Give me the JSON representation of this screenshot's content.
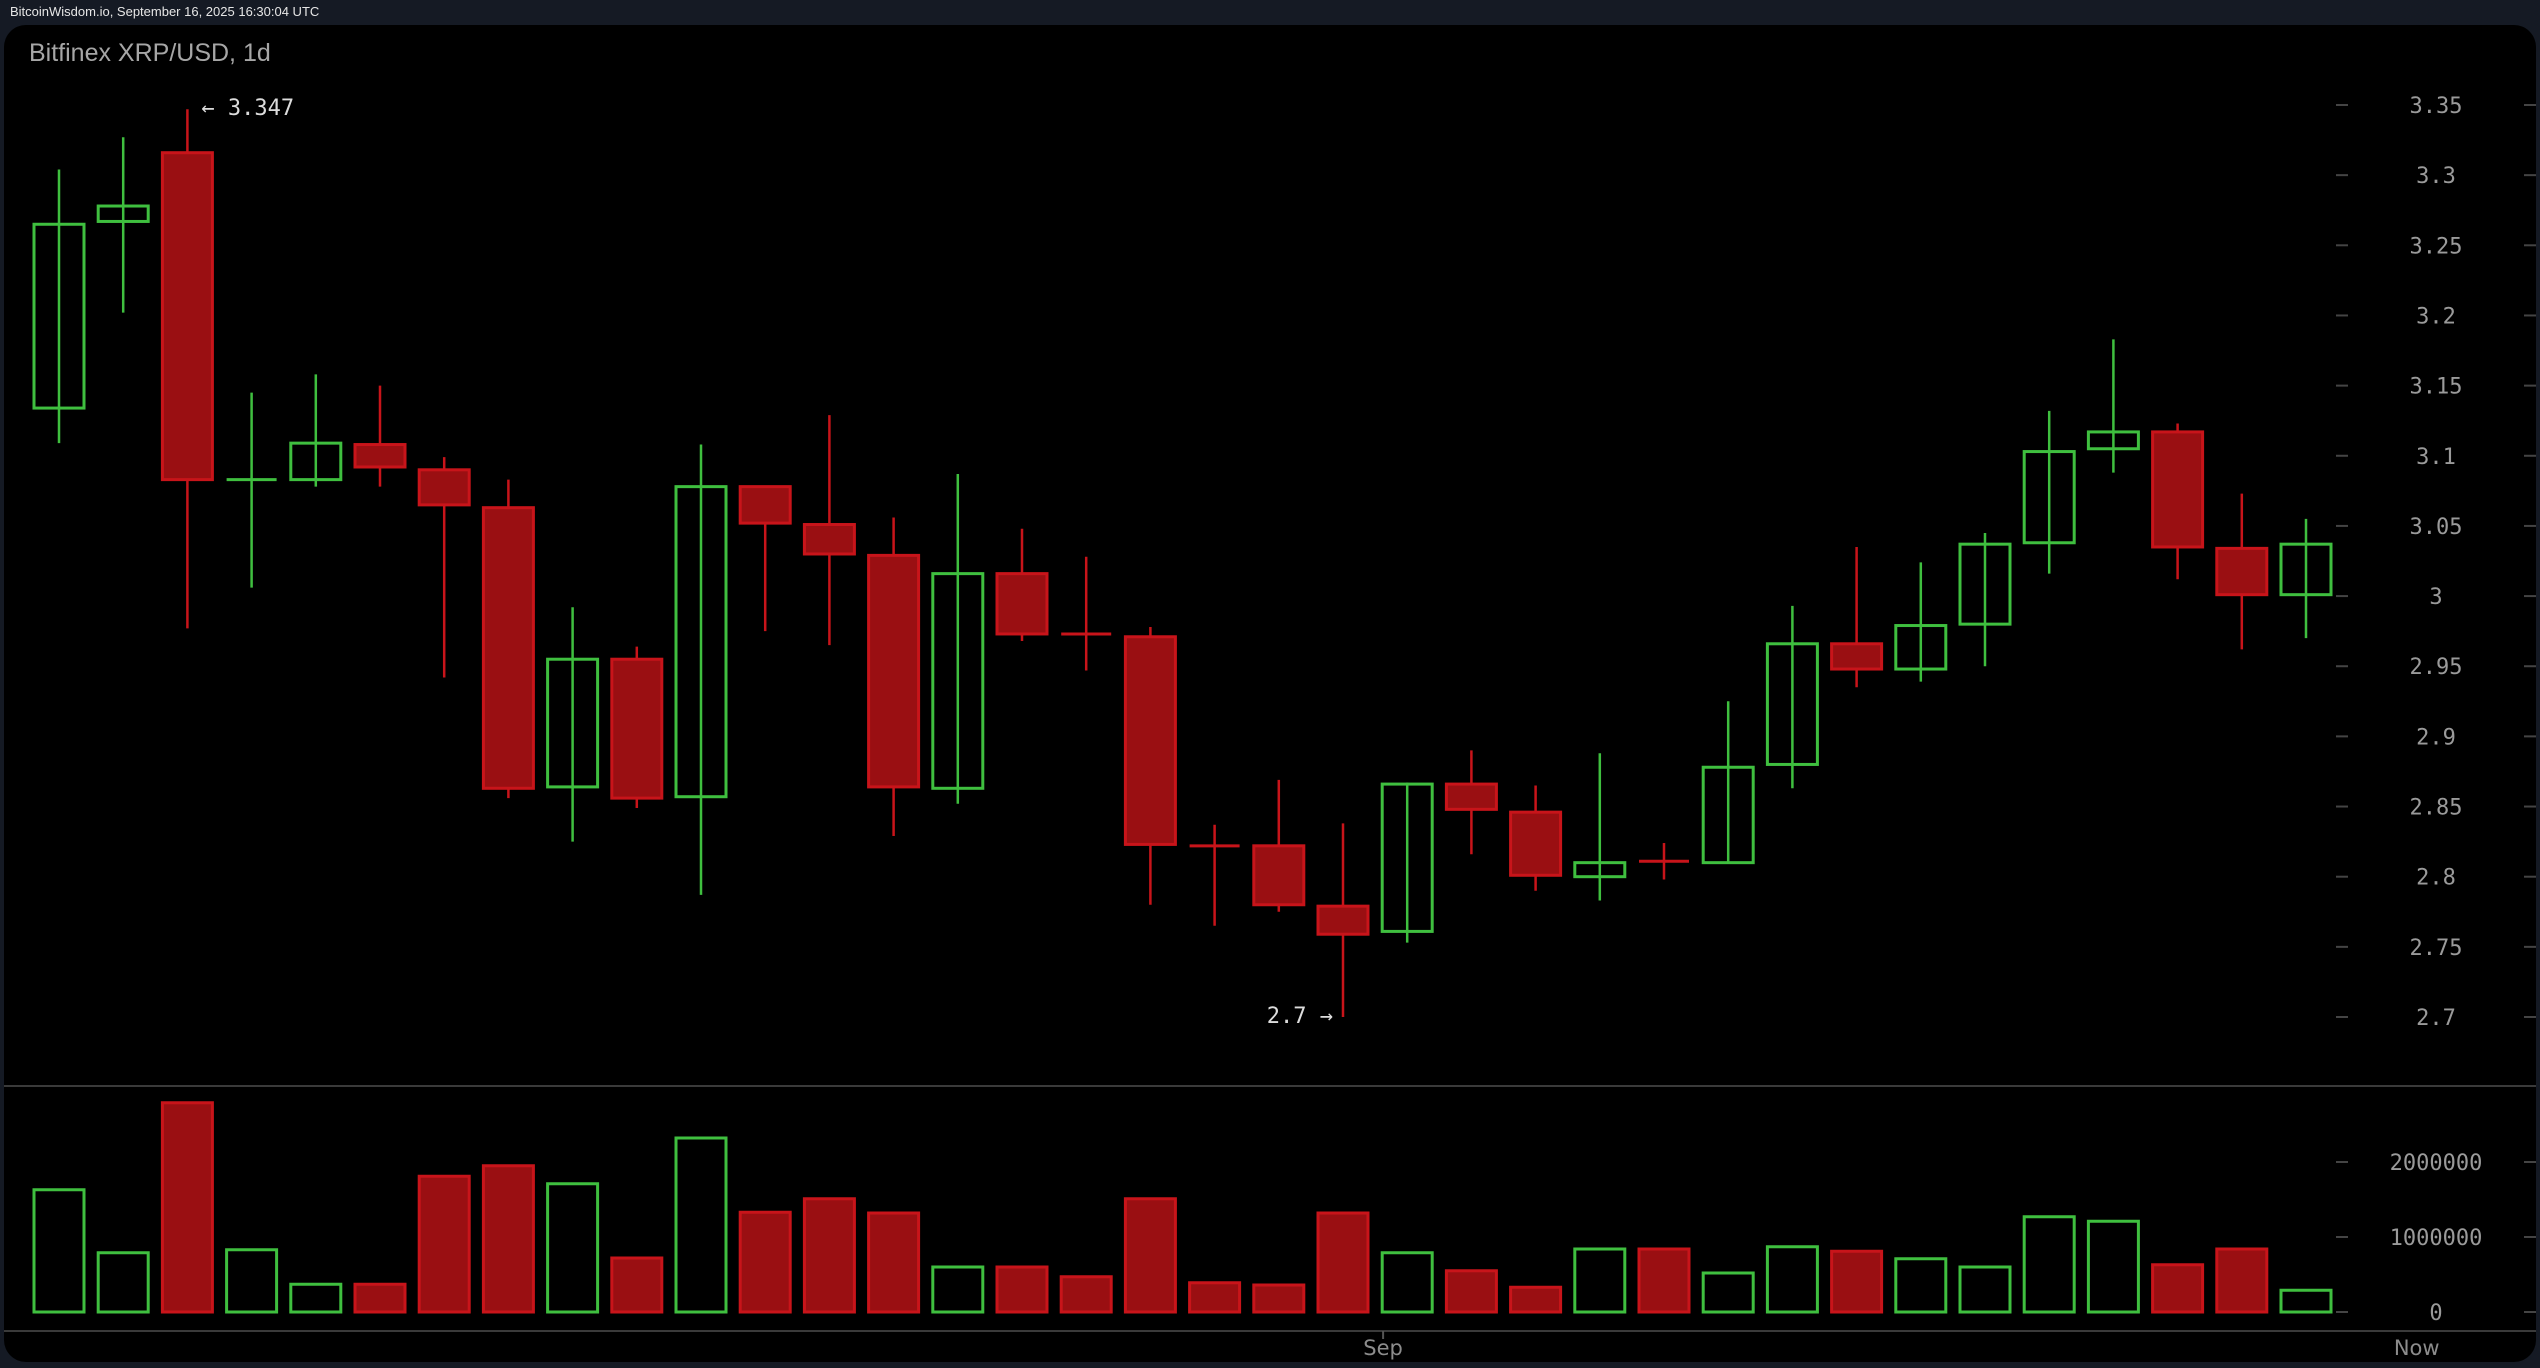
{
  "watermark": "BitcoinWisdom.io, September 16, 2025 16:30:04 UTC",
  "title": "Bitfinex XRP/USD, 1d",
  "colors": {
    "up": "#3fbf3f",
    "down": "#c8141a",
    "down_fill": "#9a0f12",
    "grid": "#3a3a3a",
    "axis_text": "#9a9a9a",
    "background": "#000000"
  },
  "annotations": {
    "high_label": "← 3.347",
    "low_label": "2.7 →"
  },
  "x_axis": {
    "labels": [
      {
        "text": "Sep",
        "index": 21.5
      },
      {
        "text": "Now",
        "index": 37.6
      }
    ]
  },
  "chart_data": {
    "type": "candlestick",
    "title": "Bitfinex XRP/USD, 1d",
    "xlabel": "",
    "ylabel": "",
    "price_ticks": [
      3.35,
      3.3,
      3.25,
      3.2,
      3.15,
      3.1,
      3.05,
      3,
      2.95,
      2.9,
      2.85,
      2.8,
      2.75,
      2.7
    ],
    "price_tick_labels": [
      "3.35",
      "3.3",
      "3.25",
      "3.2",
      "3.15",
      "3.1",
      "3.05",
      "3",
      "2.95",
      "2.9",
      "2.85",
      "2.8",
      "2.75",
      "2.7"
    ],
    "volume_ticks": [
      0,
      1000000,
      2000000
    ],
    "volume_tick_labels": [
      "0",
      "1000000",
      "2000000"
    ],
    "ylim": [
      2.7,
      3.35
    ],
    "x_tick_labels": [
      "Sep",
      "Now"
    ],
    "high": 3.347,
    "low": 2.7,
    "candles": [
      {
        "o": 3.134,
        "h": 3.304,
        "l": 3.109,
        "c": 3.265,
        "v": 1630000
      },
      {
        "o": 3.267,
        "h": 3.327,
        "l": 3.202,
        "c": 3.278,
        "v": 790000
      },
      {
        "o": 3.316,
        "h": 3.347,
        "l": 2.977,
        "c": 3.083,
        "v": 2790000
      },
      {
        "o": 3.082,
        "h": 3.145,
        "l": 3.006,
        "c": 3.083,
        "v": 830000
      },
      {
        "o": 3.083,
        "h": 3.158,
        "l": 3.078,
        "c": 3.109,
        "v": 370000
      },
      {
        "o": 3.108,
        "h": 3.15,
        "l": 3.078,
        "c": 3.092,
        "v": 370000
      },
      {
        "o": 3.09,
        "h": 3.099,
        "l": 2.942,
        "c": 3.065,
        "v": 1810000
      },
      {
        "o": 3.063,
        "h": 3.083,
        "l": 2.856,
        "c": 2.863,
        "v": 1950000
      },
      {
        "o": 2.864,
        "h": 2.992,
        "l": 2.825,
        "c": 2.955,
        "v": 1710000
      },
      {
        "o": 2.955,
        "h": 2.964,
        "l": 2.849,
        "c": 2.856,
        "v": 720000
      },
      {
        "o": 2.857,
        "h": 3.108,
        "l": 2.787,
        "c": 3.078,
        "v": 2320000
      },
      {
        "o": 3.078,
        "h": 3.078,
        "l": 2.975,
        "c": 3.052,
        "v": 1330000
      },
      {
        "o": 3.051,
        "h": 3.129,
        "l": 2.965,
        "c": 3.03,
        "v": 1510000
      },
      {
        "o": 3.029,
        "h": 3.056,
        "l": 2.829,
        "c": 2.864,
        "v": 1320000
      },
      {
        "o": 2.863,
        "h": 3.087,
        "l": 2.852,
        "c": 3.016,
        "v": 600000
      },
      {
        "o": 3.016,
        "h": 3.048,
        "l": 2.968,
        "c": 2.973,
        "v": 600000
      },
      {
        "o": 2.973,
        "h": 3.028,
        "l": 2.947,
        "c": 2.972,
        "v": 470000
      },
      {
        "o": 2.971,
        "h": 2.978,
        "l": 2.78,
        "c": 2.823,
        "v": 1510000
      },
      {
        "o": 2.822,
        "h": 2.837,
        "l": 2.765,
        "c": 2.821,
        "v": 390000
      },
      {
        "o": 2.822,
        "h": 2.869,
        "l": 2.775,
        "c": 2.78,
        "v": 360000
      },
      {
        "o": 2.779,
        "h": 2.838,
        "l": 2.7,
        "c": 2.759,
        "v": 1320000
      },
      {
        "o": 2.761,
        "h": 2.867,
        "l": 2.753,
        "c": 2.866,
        "v": 790000
      },
      {
        "o": 2.866,
        "h": 2.89,
        "l": 2.816,
        "c": 2.848,
        "v": 550000
      },
      {
        "o": 2.846,
        "h": 2.865,
        "l": 2.79,
        "c": 2.801,
        "v": 330000
      },
      {
        "o": 2.8,
        "h": 2.888,
        "l": 2.783,
        "c": 2.81,
        "v": 840000
      },
      {
        "o": 2.811,
        "h": 2.824,
        "l": 2.798,
        "c": 2.81,
        "v": 840000
      },
      {
        "o": 2.81,
        "h": 2.925,
        "l": 2.81,
        "c": 2.878,
        "v": 520000
      },
      {
        "o": 2.88,
        "h": 2.993,
        "l": 2.863,
        "c": 2.966,
        "v": 870000
      },
      {
        "o": 2.966,
        "h": 3.035,
        "l": 2.935,
        "c": 2.948,
        "v": 810000
      },
      {
        "o": 2.948,
        "h": 3.024,
        "l": 2.939,
        "c": 2.979,
        "v": 710000
      },
      {
        "o": 2.98,
        "h": 3.045,
        "l": 2.95,
        "c": 3.037,
        "v": 600000
      },
      {
        "o": 3.038,
        "h": 3.132,
        "l": 3.016,
        "c": 3.103,
        "v": 1270000
      },
      {
        "o": 3.105,
        "h": 3.183,
        "l": 3.088,
        "c": 3.117,
        "v": 1210000
      },
      {
        "o": 3.117,
        "h": 3.123,
        "l": 3.012,
        "c": 3.035,
        "v": 630000
      },
      {
        "o": 3.034,
        "h": 3.073,
        "l": 2.962,
        "c": 3.001,
        "v": 840000
      },
      {
        "o": 3.001,
        "h": 3.055,
        "l": 2.97,
        "c": 3.037,
        "v": 290000
      }
    ]
  }
}
